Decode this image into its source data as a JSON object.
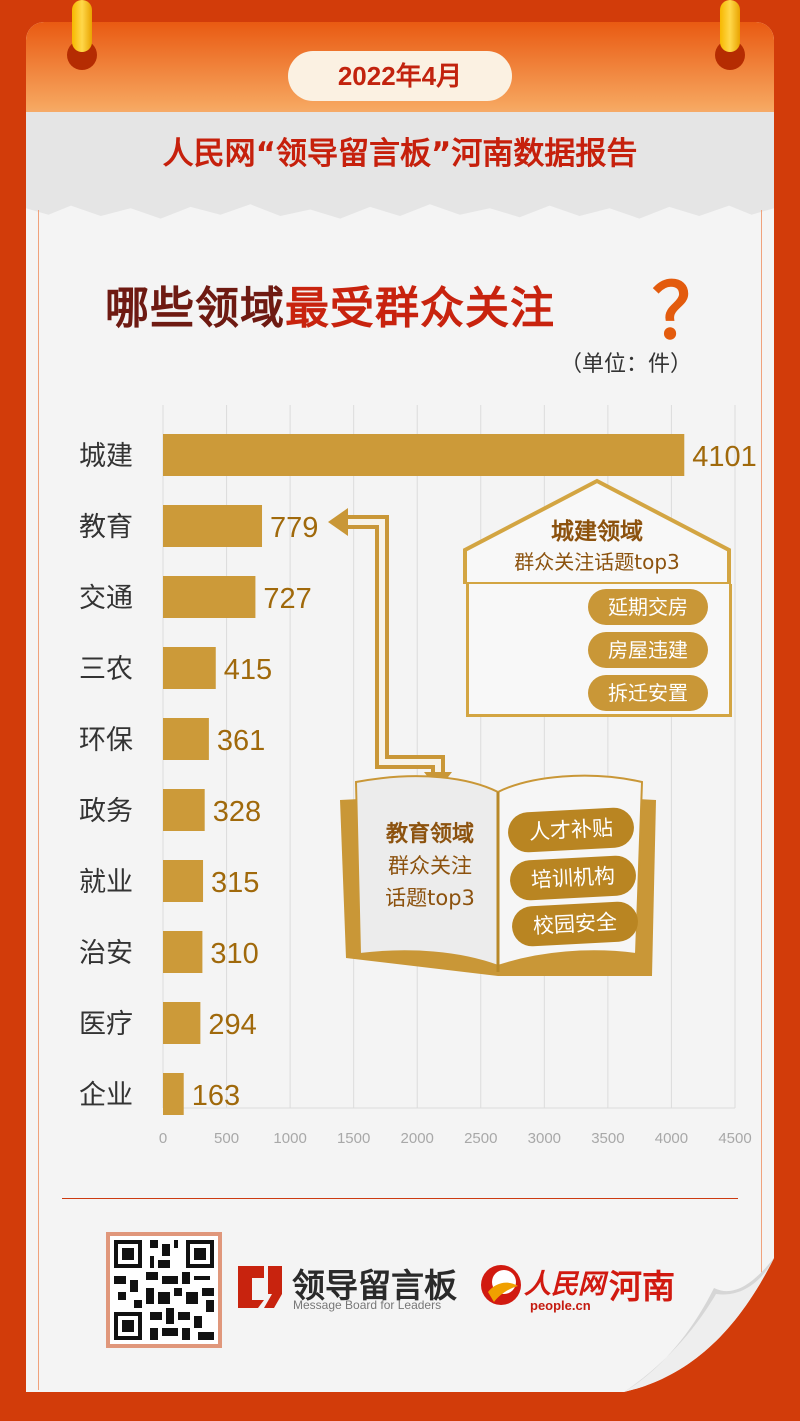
{
  "header": {
    "date": "2022年4月",
    "report_title": "人民网“领导留言板”河南数据报告"
  },
  "headline": {
    "part1": "哪些领域",
    "part2": "最受群众关注",
    "mark": "？",
    "unit": "（单位：件）"
  },
  "chart_data": {
    "type": "bar",
    "orientation": "horizontal",
    "categories": [
      "城建",
      "教育",
      "交通",
      "三农",
      "环保",
      "政务",
      "就业",
      "治安",
      "医疗",
      "企业"
    ],
    "values": [
      4101,
      779,
      727,
      415,
      361,
      328,
      315,
      310,
      294,
      163
    ],
    "xlim": [
      0,
      4500
    ],
    "xticks": [
      0,
      500,
      1000,
      1500,
      2000,
      2500,
      3000,
      3500,
      4000,
      4500
    ],
    "bar_color": "#cc9a39",
    "grid": "vertical"
  },
  "urban_panel": {
    "title": "城建领域",
    "subtitle": "群众关注话题top3",
    "topics": [
      "延期交房",
      "房屋违建",
      "拆迁安置"
    ]
  },
  "education_panel": {
    "title": "教育领域",
    "subtitle_line1": "群众关注",
    "subtitle_line2": "话题top3",
    "topics": [
      "人才补贴",
      "培训机构",
      "校园安全"
    ]
  },
  "footer": {
    "logo_name": "领导留言板",
    "logo_english": "Message Board for Leaders",
    "people_name": "人民网",
    "people_url": "people.cn",
    "region": "河南"
  },
  "colors": {
    "background": "#d23c0a",
    "accent_red": "#c8230e",
    "gold": "#cc9a39",
    "brown_text": "#8c520e"
  }
}
